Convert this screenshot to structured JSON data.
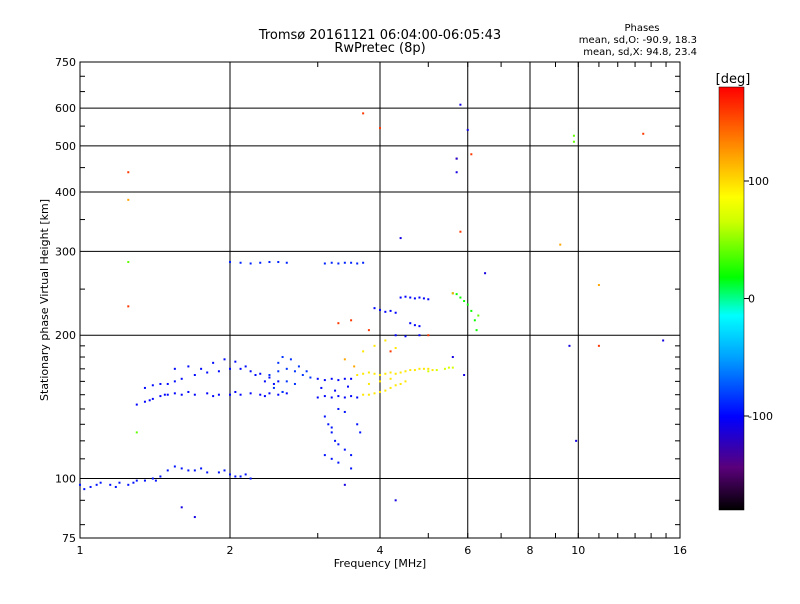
{
  "chart_data": {
    "type": "scatter",
    "title": "Tromsø 20161121 06:04:00-06:05:43",
    "subtitle": "RwPretec (8p)",
    "stats": {
      "title": "Phases",
      "line_o": "mean, sd,O: -90.9, 18.3",
      "line_x": "mean, sd,X:  94.8, 23.4"
    },
    "xlabel": "Frequency [MHz]",
    "ylabel": "Stationary phase Virtual Height [km]",
    "xscale": "log",
    "yscale": "log",
    "xlim": [
      1,
      16
    ],
    "ylim": [
      75,
      750
    ],
    "x_ticks": [
      1,
      2,
      4,
      6,
      8,
      10,
      16
    ],
    "x_tick_labels": [
      "1",
      "2",
      "4",
      "6",
      "8",
      "10",
      "16"
    ],
    "y_ticks": [
      75,
      100,
      200,
      300,
      400,
      500,
      600,
      750
    ],
    "y_tick_labels": [
      "75",
      "100",
      "200",
      "300",
      "400",
      "500",
      "600",
      "750"
    ],
    "grid": true,
    "colorbar": {
      "label": "[deg]",
      "range": [
        -180,
        180
      ],
      "ticks": [
        100,
        0,
        -100
      ],
      "tick_labels": [
        "100",
        "0",
        "-100"
      ]
    },
    "clusters": [
      {
        "phase": -95,
        "points": [
          [
            1.0,
            97
          ],
          [
            1.05,
            96
          ],
          [
            1.1,
            98
          ],
          [
            1.15,
            97
          ],
          [
            1.2,
            98
          ],
          [
            1.25,
            97
          ],
          [
            1.3,
            99
          ],
          [
            1.35,
            99
          ],
          [
            1.4,
            100
          ],
          [
            1.45,
            101
          ],
          [
            1.5,
            104
          ],
          [
            1.55,
            106
          ],
          [
            1.6,
            105
          ],
          [
            1.7,
            104
          ],
          [
            1.8,
            103
          ],
          [
            1.9,
            103
          ],
          [
            2.0,
            102
          ],
          [
            2.05,
            101
          ],
          [
            2.1,
            101
          ],
          [
            2.2,
            100
          ],
          [
            1.02,
            95
          ],
          [
            1.08,
            97
          ],
          [
            1.18,
            96
          ],
          [
            1.28,
            98
          ],
          [
            1.42,
            99
          ],
          [
            1.65,
            104
          ],
          [
            1.75,
            105
          ],
          [
            1.95,
            104
          ],
          [
            2.15,
            102
          ]
        ]
      },
      {
        "phase": -100,
        "points": [
          [
            1.3,
            143
          ],
          [
            1.35,
            145
          ],
          [
            1.4,
            147
          ],
          [
            1.45,
            149
          ],
          [
            1.5,
            150
          ],
          [
            1.55,
            151
          ],
          [
            1.6,
            150
          ],
          [
            1.7,
            150
          ],
          [
            1.8,
            151
          ],
          [
            1.9,
            150
          ],
          [
            2.0,
            150
          ],
          [
            2.1,
            150
          ],
          [
            2.2,
            151
          ],
          [
            2.3,
            150
          ],
          [
            2.4,
            151
          ],
          [
            2.5,
            150
          ],
          [
            2.6,
            151
          ],
          [
            1.38,
            146
          ],
          [
            1.48,
            150
          ],
          [
            1.65,
            152
          ],
          [
            1.85,
            149
          ],
          [
            2.05,
            152
          ],
          [
            2.35,
            149
          ],
          [
            2.55,
            152
          ]
        ]
      },
      {
        "phase": -98,
        "points": [
          [
            1.35,
            155
          ],
          [
            1.4,
            157
          ],
          [
            1.45,
            158
          ],
          [
            1.5,
            158
          ],
          [
            1.55,
            160
          ],
          [
            1.6,
            162
          ],
          [
            1.7,
            165
          ],
          [
            1.8,
            167
          ],
          [
            1.9,
            168
          ],
          [
            2.0,
            170
          ],
          [
            2.1,
            170
          ],
          [
            2.2,
            168
          ],
          [
            2.3,
            166
          ],
          [
            2.4,
            163
          ],
          [
            2.5,
            160
          ],
          [
            1.55,
            170
          ],
          [
            1.65,
            172
          ],
          [
            1.75,
            170
          ],
          [
            1.85,
            175
          ],
          [
            1.95,
            178
          ],
          [
            2.05,
            176
          ],
          [
            2.15,
            172
          ],
          [
            2.25,
            165
          ],
          [
            2.35,
            160
          ],
          [
            2.45,
            158
          ]
        ]
      },
      {
        "phase": -85,
        "points": [
          [
            2.4,
            165
          ],
          [
            2.5,
            168
          ],
          [
            2.6,
            170
          ],
          [
            2.7,
            168
          ],
          [
            2.8,
            165
          ],
          [
            2.6,
            160
          ],
          [
            2.7,
            158
          ],
          [
            2.5,
            175
          ],
          [
            2.55,
            180
          ],
          [
            2.65,
            178
          ],
          [
            2.75,
            172
          ],
          [
            2.85,
            168
          ],
          [
            2.9,
            163
          ],
          [
            2.45,
            155
          ],
          [
            2.55,
            152
          ]
        ]
      },
      {
        "phase": -100,
        "points": [
          [
            3.0,
            162
          ],
          [
            3.1,
            161
          ],
          [
            3.2,
            162
          ],
          [
            3.3,
            161
          ],
          [
            3.4,
            162
          ],
          [
            3.5,
            162
          ],
          [
            3.0,
            148
          ],
          [
            3.1,
            149
          ],
          [
            3.2,
            148
          ],
          [
            3.3,
            149
          ],
          [
            3.4,
            148
          ],
          [
            3.5,
            149
          ],
          [
            3.6,
            148
          ],
          [
            3.05,
            155
          ],
          [
            3.25,
            153
          ],
          [
            3.45,
            156
          ]
        ]
      },
      {
        "phase": -95,
        "points": [
          [
            3.1,
            135
          ],
          [
            3.15,
            130
          ],
          [
            3.2,
            125
          ],
          [
            3.25,
            120
          ],
          [
            3.3,
            118
          ],
          [
            3.4,
            115
          ],
          [
            3.5,
            112
          ],
          [
            3.2,
            110
          ],
          [
            3.3,
            108
          ],
          [
            3.5,
            105
          ],
          [
            3.3,
            140
          ],
          [
            3.4,
            138
          ],
          [
            3.6,
            130
          ],
          [
            3.65,
            125
          ],
          [
            3.2,
            128
          ],
          [
            3.1,
            112
          ]
        ]
      },
      {
        "phase": 95,
        "points": [
          [
            3.6,
            165
          ],
          [
            3.7,
            166
          ],
          [
            3.8,
            167
          ],
          [
            3.9,
            166
          ],
          [
            4.0,
            165
          ],
          [
            4.1,
            166
          ],
          [
            4.2,
            167
          ],
          [
            4.3,
            166
          ],
          [
            4.4,
            167
          ],
          [
            4.5,
            168
          ],
          [
            4.6,
            169
          ],
          [
            4.7,
            169
          ],
          [
            4.8,
            170
          ],
          [
            4.9,
            170
          ],
          [
            5.0,
            170
          ],
          [
            5.1,
            169
          ],
          [
            3.7,
            150
          ],
          [
            3.8,
            150
          ],
          [
            3.9,
            151
          ],
          [
            4.0,
            152
          ],
          [
            4.1,
            153
          ],
          [
            4.2,
            155
          ],
          [
            4.3,
            157
          ],
          [
            4.4,
            158
          ],
          [
            4.5,
            160
          ],
          [
            3.8,
            158
          ],
          [
            4.0,
            160
          ],
          [
            4.2,
            162
          ],
          [
            3.7,
            185
          ],
          [
            3.9,
            190
          ],
          [
            4.1,
            195
          ],
          [
            4.3,
            188
          ]
        ]
      },
      {
        "phase": 70,
        "points": [
          [
            5.0,
            168
          ],
          [
            5.2,
            169
          ],
          [
            5.4,
            170
          ],
          [
            5.5,
            171
          ],
          [
            5.6,
            171
          ]
        ]
      },
      {
        "phase": -90,
        "points": [
          [
            2.0,
            285
          ],
          [
            2.1,
            284
          ],
          [
            2.2,
            283
          ],
          [
            2.3,
            284
          ],
          [
            2.4,
            285
          ],
          [
            2.5,
            285
          ],
          [
            2.6,
            284
          ],
          [
            3.1,
            283
          ],
          [
            3.2,
            284
          ],
          [
            3.3,
            283
          ],
          [
            3.4,
            284
          ],
          [
            3.5,
            284
          ],
          [
            3.6,
            283
          ],
          [
            3.7,
            284
          ]
        ]
      },
      {
        "phase": -100,
        "points": [
          [
            4.4,
            240
          ],
          [
            4.5,
            241
          ],
          [
            4.6,
            240
          ],
          [
            4.7,
            239
          ],
          [
            4.8,
            240
          ],
          [
            4.9,
            239
          ],
          [
            5.0,
            238
          ],
          [
            3.9,
            228
          ],
          [
            4.0,
            226
          ],
          [
            4.1,
            224
          ],
          [
            4.2,
            225
          ],
          [
            4.3,
            223
          ],
          [
            4.6,
            212
          ],
          [
            4.7,
            210
          ],
          [
            4.8,
            209
          ],
          [
            4.3,
            200
          ],
          [
            4.5,
            199
          ],
          [
            4.8,
            200
          ]
        ]
      },
      {
        "phase": 20,
        "points": [
          [
            5.6,
            245
          ],
          [
            5.7,
            244
          ],
          [
            5.8,
            240
          ],
          [
            5.9,
            236
          ],
          [
            6.0,
            232
          ],
          [
            6.1,
            225
          ],
          [
            6.2,
            215
          ],
          [
            6.25,
            205
          ]
        ]
      },
      {
        "phase": 160,
        "points": [
          [
            1.25,
            440
          ],
          [
            1.25,
            230
          ],
          [
            3.7,
            585
          ],
          [
            4.0,
            545
          ],
          [
            5.7,
            470
          ],
          [
            6.1,
            480
          ],
          [
            5.8,
            330
          ],
          [
            13.5,
            530
          ],
          [
            3.5,
            215
          ],
          [
            3.8,
            205
          ],
          [
            3.3,
            212
          ],
          [
            11.0,
            190
          ],
          [
            5.0,
            200
          ],
          [
            4.2,
            185
          ]
        ]
      },
      {
        "phase": 120,
        "points": [
          [
            1.25,
            385
          ],
          [
            9.2,
            310
          ],
          [
            3.4,
            178
          ],
          [
            3.55,
            172
          ],
          [
            11.0,
            255
          ],
          [
            5.6,
            245
          ]
        ]
      },
      {
        "phase": 40,
        "points": [
          [
            1.25,
            285
          ],
          [
            9.8,
            525
          ],
          [
            9.8,
            510
          ],
          [
            6.3,
            220
          ],
          [
            1.3,
            125
          ]
        ]
      },
      {
        "phase": -110,
        "points": [
          [
            5.8,
            610
          ],
          [
            5.7,
            470
          ],
          [
            5.7,
            440
          ],
          [
            6.0,
            540
          ],
          [
            4.4,
            320
          ],
          [
            6.5,
            270
          ],
          [
            4.3,
            90
          ],
          [
            1.7,
            83
          ],
          [
            1.6,
            87
          ],
          [
            3.4,
            97
          ],
          [
            9.9,
            120
          ],
          [
            14.8,
            195
          ],
          [
            9.6,
            190
          ],
          [
            5.6,
            180
          ],
          [
            5.9,
            165
          ]
        ]
      }
    ]
  }
}
